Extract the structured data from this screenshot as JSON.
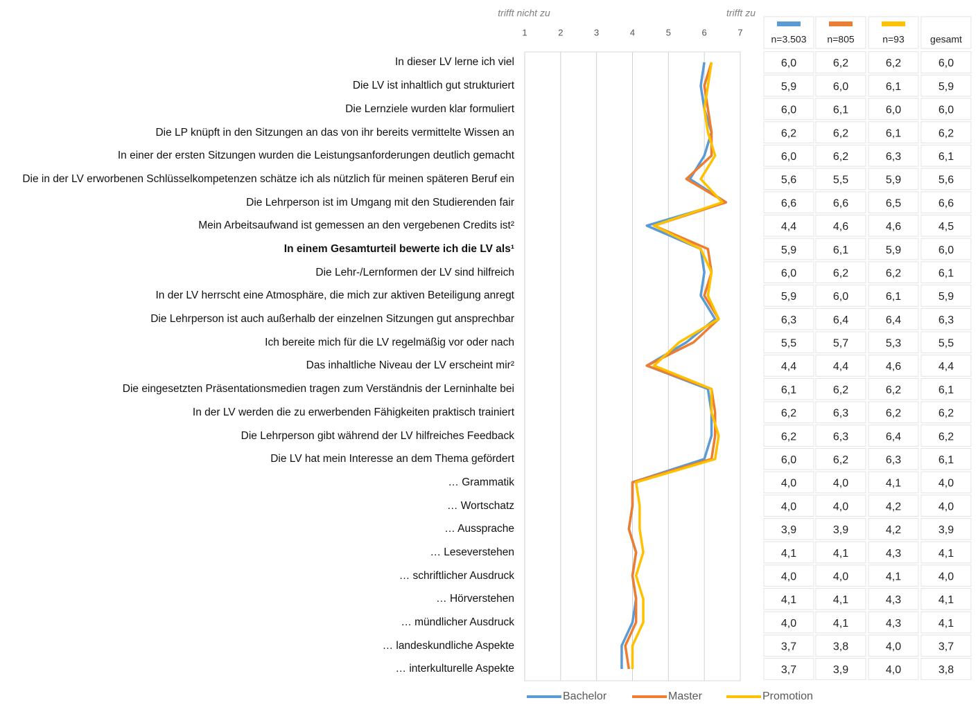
{
  "chart_data": {
    "type": "line",
    "orientation": "horizontal",
    "annotations": [
      "trifft nicht zu",
      "trifft zu"
    ],
    "xlim": [
      1,
      7
    ],
    "xticks": [
      1,
      2,
      3,
      4,
      5,
      6,
      7
    ],
    "grid": true,
    "legend": "bottom",
    "emphasis": [
      8
    ],
    "categories": [
      "In dieser LV lerne ich viel",
      "Die LV ist inhaltlich gut strukturiert",
      "Die Lernziele wurden klar formuliert",
      "Die LP knüpft in den Sitzungen an das von ihr bereits vermittelte Wissen an",
      "In einer der ersten Sitzungen wurden die Leistungsanforderungen deutlich gemacht",
      "Die in der LV erworbenen Schlüsselkompetenzen schätze ich als nützlich für meinen späteren Beruf ein",
      "Die Lehrperson ist im Umgang mit den Studierenden fair",
      "Mein Arbeitsaufwand ist gemessen an den vergebenen Credits ist²",
      "In einem Gesamturteil bewerte ich die LV als¹",
      "Die Lehr-/Lernformen der LV sind hilfreich",
      "In der LV herrscht eine Atmosphäre, die mich zur aktiven Beteiligung anregt",
      "Die Lehrperson ist auch außerhalb der einzelnen Sitzungen gut ansprechbar",
      "Ich bereite mich für die LV regelmäßig vor oder nach",
      "Das inhaltliche Niveau der LV erscheint mir²",
      "Die eingesetzten Präsentationsmedien tragen zum Verständnis der Lerninhalte bei",
      "In der LV werden die zu erwerbenden Fähigkeiten praktisch trainiert",
      "Die Lehrperson gibt während der LV hilfreiches Feedback",
      "Die LV hat mein Interesse an dem Thema gefördert",
      "… Grammatik",
      "… Wortschatz",
      "… Aussprache",
      "… Leseverstehen",
      "… schriftlicher Ausdruck",
      "… Hörverstehen",
      "… mündlicher Ausdruck",
      "… landeskundliche Aspekte",
      "… interkulturelle Aspekte"
    ],
    "series": [
      {
        "name": "Bachelor",
        "color": "#5b9bd5",
        "n": "n=3.503",
        "values": [
          6.0,
          5.9,
          6.0,
          6.2,
          6.0,
          5.6,
          6.6,
          4.4,
          5.9,
          6.0,
          5.9,
          6.3,
          5.5,
          4.4,
          6.1,
          6.2,
          6.2,
          6.0,
          4.0,
          4.0,
          3.9,
          4.1,
          4.0,
          4.1,
          4.0,
          3.7,
          3.7
        ],
        "value_labels": [
          "6,0",
          "5,9",
          "6,0",
          "6,2",
          "6,0",
          "5,6",
          "6,6",
          "4,4",
          "5,9",
          "6,0",
          "5,9",
          "6,3",
          "5,5",
          "4,4",
          "6,1",
          "6,2",
          "6,2",
          "6,0",
          "4,0",
          "4,0",
          "3,9",
          "4,1",
          "4,0",
          "4,1",
          "4,0",
          "3,7",
          "3,7"
        ]
      },
      {
        "name": "Master",
        "color": "#ed7d31",
        "n": "n=805",
        "values": [
          6.2,
          6.0,
          6.1,
          6.2,
          6.2,
          5.5,
          6.6,
          4.6,
          6.1,
          6.2,
          6.0,
          6.4,
          5.7,
          4.4,
          6.2,
          6.3,
          6.3,
          6.2,
          4.0,
          4.0,
          3.9,
          4.1,
          4.0,
          4.1,
          4.1,
          3.8,
          3.9
        ],
        "value_labels": [
          "6,2",
          "6,0",
          "6,1",
          "6,2",
          "6,2",
          "5,5",
          "6,6",
          "4,6",
          "6,1",
          "6,2",
          "6,0",
          "6,4",
          "5,7",
          "4,4",
          "6,2",
          "6,3",
          "6,3",
          "6,2",
          "4,0",
          "4,0",
          "3,9",
          "4,1",
          "4,0",
          "4,1",
          "4,1",
          "3,8",
          "3,9"
        ]
      },
      {
        "name": "Promotion",
        "color": "#ffc000",
        "n": "n=93",
        "values": [
          6.2,
          6.1,
          6.0,
          6.1,
          6.3,
          5.9,
          6.5,
          4.6,
          5.9,
          6.2,
          6.1,
          6.4,
          5.3,
          4.6,
          6.2,
          6.2,
          6.4,
          6.3,
          4.1,
          4.2,
          4.2,
          4.3,
          4.1,
          4.3,
          4.3,
          4.0,
          4.0
        ],
        "value_labels": [
          "6,2",
          "6,1",
          "6,0",
          "6,1",
          "6,3",
          "5,9",
          "6,5",
          "4,6",
          "5,9",
          "6,2",
          "6,1",
          "6,4",
          "5,3",
          "4,6",
          "6,2",
          "6,2",
          "6,4",
          "6,3",
          "4,1",
          "4,2",
          "4,2",
          "4,3",
          "4,1",
          "4,3",
          "4,3",
          "4,0",
          "4,0"
        ]
      }
    ],
    "total_header": "gesamt",
    "total": [
      "6,0",
      "5,9",
      "6,0",
      "6,2",
      "6,1",
      "5,6",
      "6,6",
      "4,5",
      "6,0",
      "6,1",
      "5,9",
      "6,3",
      "5,5",
      "4,4",
      "6,1",
      "6,2",
      "6,2",
      "6,1",
      "4,0",
      "4,0",
      "3,9",
      "4,1",
      "4,0",
      "4,1",
      "4,1",
      "3,7",
      "3,8"
    ]
  }
}
